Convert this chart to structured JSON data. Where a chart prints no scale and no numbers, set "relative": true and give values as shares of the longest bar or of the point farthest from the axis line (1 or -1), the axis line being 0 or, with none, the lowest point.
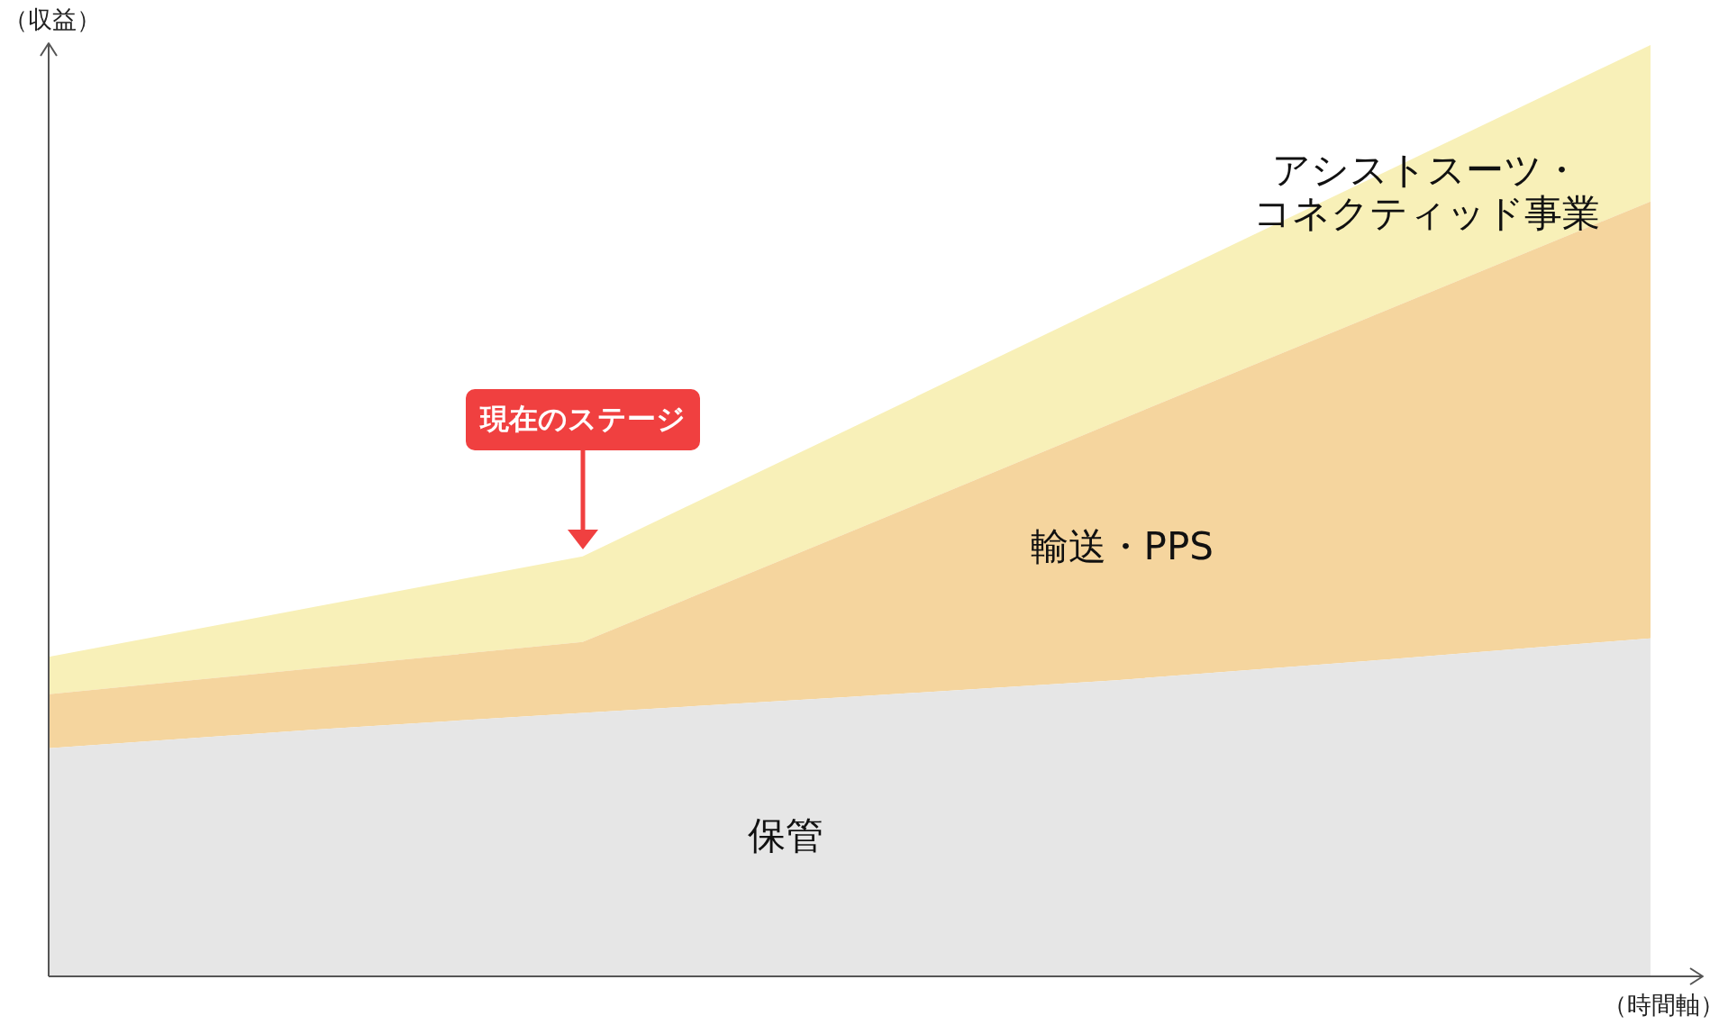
{
  "chart_data": {
    "type": "area",
    "relative": true,
    "stacked": true,
    "xlabel": "（時間軸）",
    "ylabel": "（収益）",
    "categories": [
      null,
      null,
      null,
      null,
      null,
      null,
      null
    ],
    "series": [
      {
        "name": "保管",
        "color": "#e6e6e6",
        "values": [
          0.245,
          0.265,
          0.283,
          0.3,
          0.318,
          0.34,
          0.363
        ]
      },
      {
        "name": "輸送・PPS",
        "color": "#f5d59e",
        "values": [
          0.058,
          0.066,
          0.076,
          0.177,
          0.278,
          0.374,
          0.469
        ]
      },
      {
        "name": "アシストスーツ・コネクティッド事業",
        "color": "#f8f0b8",
        "values": [
          0.04,
          0.066,
          0.092,
          0.111,
          0.13,
          0.149,
          0.168
        ]
      }
    ],
    "annotations": [
      "現在のステージ"
    ]
  }
}
